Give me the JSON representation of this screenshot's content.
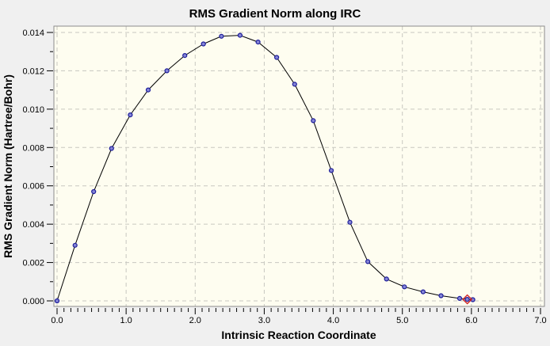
{
  "window": {
    "title": "RMS Gradient Norm along IRC"
  },
  "colors": {
    "page_bg": "#f0f0f0",
    "plot_bg": "#fefdf0",
    "plot_border": "#8c8c8c",
    "grid": "#c8c8c0",
    "tick": "#000000",
    "line": "#000000",
    "marker_fill": "#8585d6",
    "marker_stroke": "#1e1e9b",
    "highlight": "#d02020",
    "text": "#000000"
  },
  "chart_data": {
    "type": "line",
    "title": "RMS Gradient Norm along IRC",
    "xlabel": "Intrinsic Reaction Coordinate",
    "ylabel": "RMS Gradient Norm (Hartree/Bohr)",
    "xlim": [
      0.0,
      7.0
    ],
    "ylim": [
      0.0,
      0.014
    ],
    "x_major_step": 1.0,
    "x_minor_step": 0.1,
    "y_major_step": 0.002,
    "y_minor_step": 0.001,
    "x_tick_labels": [
      "0.0",
      "1.0",
      "2.0",
      "3.0",
      "4.0",
      "5.0",
      "6.0",
      "7.0"
    ],
    "y_tick_labels": [
      "0.000",
      "0.002",
      "0.004",
      "0.006",
      "0.008",
      "0.010",
      "0.012",
      "0.014"
    ],
    "grid": true,
    "grid_style": "dashed",
    "legend": "none",
    "series": [
      {
        "name": "RMS gradient norm",
        "marker": "circle",
        "x": [
          0.0,
          0.26,
          0.53,
          0.79,
          1.06,
          1.32,
          1.59,
          1.85,
          2.12,
          2.38,
          2.65,
          2.91,
          3.18,
          3.44,
          3.71,
          3.97,
          4.24,
          4.5,
          4.77,
          5.03,
          5.3,
          5.56,
          5.83,
          5.94,
          6.02
        ],
        "y": [
          0.0,
          0.0029,
          0.0057,
          0.00795,
          0.0097,
          0.011,
          0.012,
          0.0128,
          0.0134,
          0.0138,
          0.01385,
          0.0135,
          0.0127,
          0.0113,
          0.0094,
          0.0068,
          0.0041,
          0.00205,
          0.00114,
          0.00073,
          0.00047,
          0.00027,
          0.00013,
          8e-05,
          6e-05
        ]
      }
    ],
    "highlight_point": {
      "x": 5.94,
      "y": 8e-05,
      "marker": "diamond-outline"
    }
  }
}
